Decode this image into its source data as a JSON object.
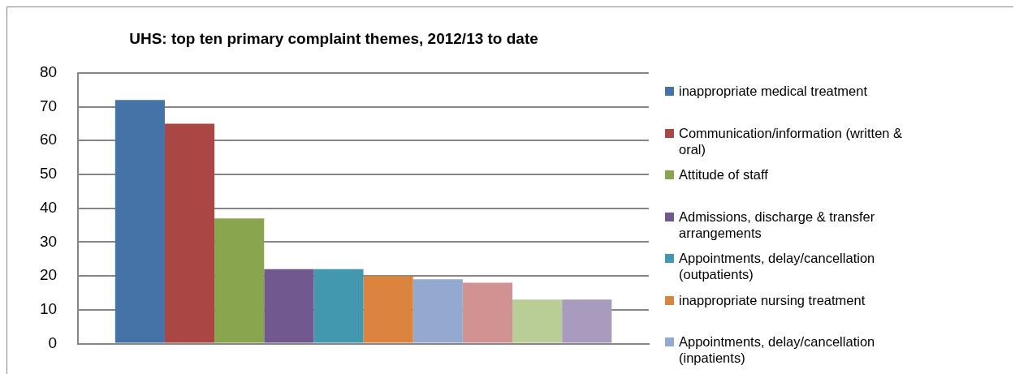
{
  "chart_data": {
    "type": "bar",
    "title": "UHS: top ten primary complaint themes, 2012/13 to date",
    "categories": [
      null
    ],
    "series": [
      {
        "name": "inappropriate medical treatment",
        "color": "#4573a7",
        "values": [
          72
        ]
      },
      {
        "name": "Communication/information (written & oral)",
        "color": "#aa4644",
        "values": [
          65
        ]
      },
      {
        "name": "Attitude of staff",
        "color": "#89a54e",
        "values": [
          37
        ]
      },
      {
        "name": "Admissions, discharge & transfer arrangements",
        "color": "#71588f",
        "values": [
          22
        ]
      },
      {
        "name": "Appointments, delay/cancellation (outpatients)",
        "color": "#4298af",
        "values": [
          22
        ]
      },
      {
        "name": "inappropriate nursing treatment",
        "color": "#db843d",
        "values": [
          20
        ]
      },
      {
        "name": "Appointments, delay/cancellation (inpatients)",
        "color": "#93a9cf",
        "values": [
          19
        ]
      },
      {
        "color": "#d19392",
        "values": [
          18
        ]
      },
      {
        "color": "#b9cd96",
        "values": [
          13
        ]
      },
      {
        "color": "#a99bbd",
        "values": [
          13
        ]
      }
    ],
    "ylim": [
      0,
      80
    ],
    "yticks": [
      0,
      10,
      20,
      30,
      40,
      50,
      60,
      70,
      80
    ],
    "grid": "y",
    "legend": "right"
  }
}
